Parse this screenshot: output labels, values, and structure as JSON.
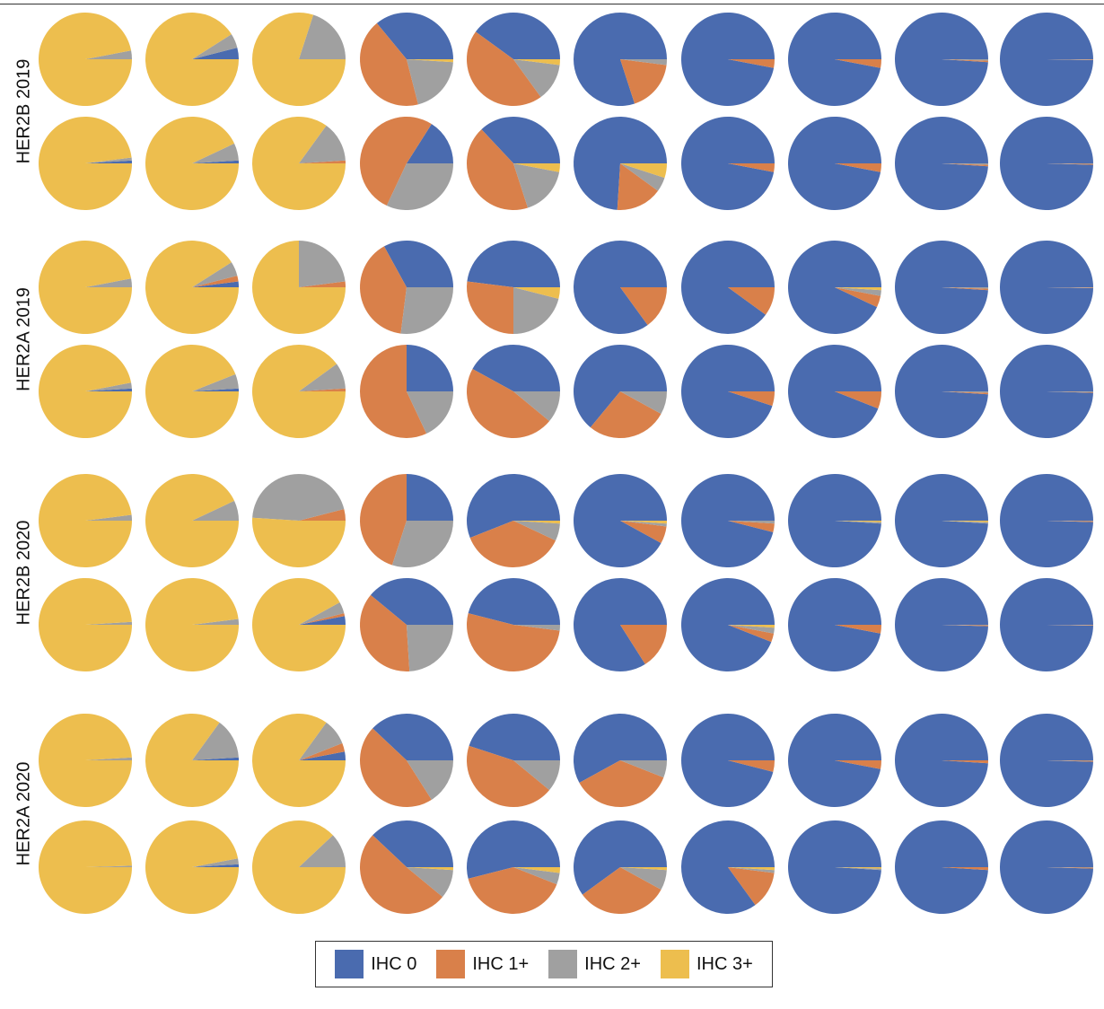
{
  "chart_data": {
    "type": "pie",
    "title": "",
    "categories": [
      "IHC 0",
      "IHC 1+",
      "IHC 2+",
      "IHC 3+"
    ],
    "colors": {
      "IHC 0": "#4a6baf",
      "IHC 1+": "#d9804a",
      "IHC 2+": "#a0a0a0",
      "IHC 3+": "#edbe4e"
    },
    "legend": {
      "position": "bottom-center",
      "items": [
        "IHC 0",
        "IHC 1+",
        "IHC 2+",
        "IHC 3+"
      ]
    },
    "groups": [
      {
        "label": "HER2B 2019",
        "rows": [
          [
            [
              0,
              0,
              3,
              97
            ],
            [
              4,
              0,
              5,
              91
            ],
            [
              0,
              0,
              20,
              80
            ],
            [
              36,
              43,
              20,
              1
            ],
            [
              40,
              45,
              13,
              2
            ],
            [
              80,
              18,
              2,
              0
            ],
            [
              97,
              3,
              0,
              0
            ],
            [
              97,
              3,
              0,
              0
            ],
            [
              99,
              0.5,
              0.5,
              0
            ],
            [
              99.7,
              0.2,
              0.1,
              0
            ]
          ],
          [
            [
              1,
              0,
              1,
              98
            ],
            [
              1,
              0,
              6,
              93
            ],
            [
              0,
              1,
              14,
              85
            ],
            [
              16,
              52,
              32,
              0
            ],
            [
              37,
              43,
              17,
              3
            ],
            [
              74,
              16,
              5,
              5
            ],
            [
              97,
              3,
              0,
              0
            ],
            [
              97,
              3,
              0,
              0
            ],
            [
              99,
              0.5,
              0.5,
              0
            ],
            [
              99.5,
              0.3,
              0.2,
              0
            ]
          ]
        ]
      },
      {
        "label": "HER2A 2019",
        "rows": [
          [
            [
              0,
              0,
              3,
              97
            ],
            [
              2,
              2,
              5,
              91
            ],
            [
              0,
              2,
              23,
              75
            ],
            [
              33,
              40,
              27,
              0
            ],
            [
              48,
              27,
              21,
              4
            ],
            [
              85,
              15,
              0,
              0
            ],
            [
              90,
              10,
              0,
              0
            ],
            [
              93,
              4,
              2,
              1
            ],
            [
              99,
              0.5,
              0.5,
              0
            ],
            [
              99.7,
              0.2,
              0.1,
              0
            ]
          ],
          [
            [
              1,
              0,
              2,
              97
            ],
            [
              1,
              0,
              5,
              94
            ],
            [
              0,
              1,
              9,
              90
            ],
            [
              25,
              57,
              18,
              0
            ],
            [
              42,
              47,
              11,
              0
            ],
            [
              64,
              28,
              8,
              0
            ],
            [
              95,
              5,
              0,
              0
            ],
            [
              94,
              6,
              0,
              0
            ],
            [
              99,
              0.5,
              0.5,
              0
            ],
            [
              99.5,
              0.2,
              0.3,
              0
            ]
          ]
        ]
      },
      {
        "label": "HER2B 2020",
        "rows": [
          [
            [
              0,
              0,
              2,
              98
            ],
            [
              0,
              0,
              7,
              93
            ],
            [
              0,
              4,
              45,
              51
            ],
            [
              25,
              45,
              30,
              0
            ],
            [
              56,
              37,
              6,
              1
            ],
            [
              92,
              6,
              1,
              1
            ],
            [
              96,
              3,
              1,
              0
            ],
            [
              99,
              0,
              0.5,
              0.5
            ],
            [
              99,
              0,
              0.5,
              0.5
            ],
            [
              99.5,
              0.3,
              0.2,
              0
            ]
          ],
          [
            [
              0,
              0,
              1,
              99
            ],
            [
              0,
              0,
              2,
              98
            ],
            [
              3,
              1,
              4,
              92
            ],
            [
              39,
              37,
              24,
              0
            ],
            [
              46,
              52,
              2,
              0
            ],
            [
              84,
              16,
              0,
              0
            ],
            [
              94,
              3,
              2,
              1
            ],
            [
              97,
              3,
              0,
              0
            ],
            [
              99.5,
              0.3,
              0.2,
              0
            ],
            [
              99.7,
              0.2,
              0.1,
              0
            ]
          ]
        ]
      },
      {
        "label": "HER2A 2020",
        "rows": [
          [
            [
              0,
              0,
              1,
              99
            ],
            [
              1,
              0,
              14,
              85
            ],
            [
              3,
              3,
              9,
              85
            ],
            [
              38,
              46,
              16,
              0
            ],
            [
              45,
              44,
              11,
              0
            ],
            [
              58,
              36,
              6,
              0
            ],
            [
              96,
              4,
              0,
              0
            ],
            [
              97,
              3,
              0,
              0
            ],
            [
              99,
              1,
              0,
              0
            ],
            [
              99.5,
              0.3,
              0.2,
              0
            ]
          ],
          [
            [
              0,
              0,
              0.5,
              99.5
            ],
            [
              1,
              0,
              2,
              97
            ],
            [
              0,
              0,
              12,
              88
            ],
            [
              38,
              51,
              10,
              1
            ],
            [
              54,
              40,
              4,
              2
            ],
            [
              60,
              32,
              7,
              1
            ],
            [
              85,
              13,
              1,
              1
            ],
            [
              99,
              0,
              0.5,
              0.5
            ],
            [
              99,
              1,
              0,
              0
            ],
            [
              99.5,
              0.3,
              0.2,
              0
            ]
          ]
        ]
      }
    ]
  }
}
